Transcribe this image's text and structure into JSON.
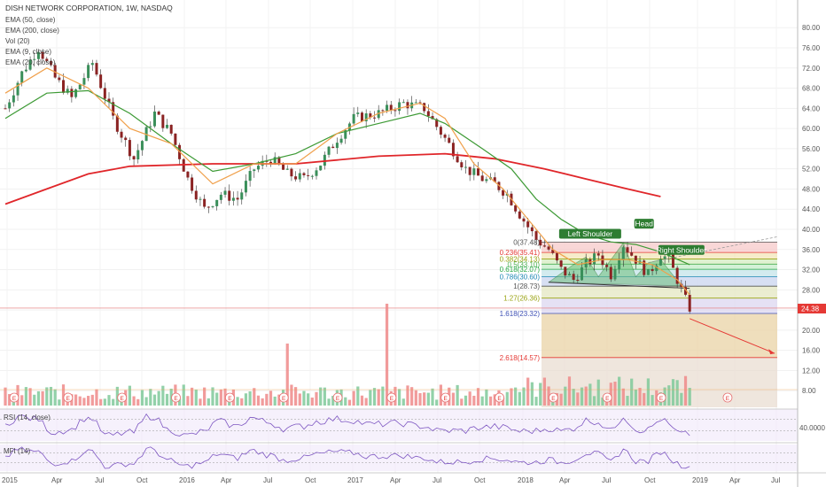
{
  "header": {
    "title": "DISH NETWORK CORPORATION, 1W, NASDAQ"
  },
  "indicators": [
    "EMA (50, close)",
    "EMA (200, close)",
    "Vol (20)",
    "EMA (9, close)",
    "EMA (20, close)"
  ],
  "panes": {
    "rsi_label": "RSI (14, close)",
    "mfi_label": "MFI (14)",
    "rsi_level": "40.0000"
  },
  "last_price": "24.38",
  "earnings_marker": "E",
  "chart_data": {
    "type": "candlestick",
    "title": "DISH NETWORK CORPORATION, 1W, NASDAQ",
    "x_ticks": [
      "2015",
      "Apr",
      "Jul",
      "Oct",
      "2016",
      "Apr",
      "Jul",
      "Oct",
      "2017",
      "Apr",
      "Jul",
      "Oct",
      "2018",
      "Apr",
      "Jul",
      "Oct",
      "2019",
      "Apr",
      "Jul"
    ],
    "y_ticks": [
      "80.00",
      "76.00",
      "72.00",
      "68.00",
      "64.00",
      "60.00",
      "56.00",
      "52.00",
      "48.00",
      "44.00",
      "40.00",
      "36.00",
      "32.00",
      "28.00",
      "24.00",
      "20.00",
      "16.00",
      "12.00",
      "8.00"
    ],
    "ylim": [
      4,
      82
    ],
    "price_path": [
      [
        0,
        64
      ],
      [
        4,
        71
      ],
      [
        8,
        76
      ],
      [
        12,
        70
      ],
      [
        16,
        66
      ],
      [
        21,
        73
      ],
      [
        26,
        62
      ],
      [
        31,
        54
      ],
      [
        36,
        63
      ],
      [
        40,
        59
      ],
      [
        44,
        50
      ],
      [
        48,
        44
      ],
      [
        52,
        47
      ],
      [
        56,
        46
      ],
      [
        60,
        52
      ],
      [
        64,
        54
      ],
      [
        68,
        51
      ],
      [
        72,
        50
      ],
      [
        76,
        53
      ],
      [
        80,
        58
      ],
      [
        84,
        62
      ],
      [
        90,
        63
      ],
      [
        96,
        65
      ],
      [
        101,
        64
      ],
      [
        106,
        58
      ],
      [
        111,
        52
      ],
      [
        115,
        50
      ],
      [
        118,
        49
      ],
      [
        121,
        47
      ],
      [
        124,
        43
      ],
      [
        128,
        38
      ],
      [
        131,
        36
      ],
      [
        134,
        32
      ],
      [
        137,
        30
      ],
      [
        140,
        33
      ],
      [
        143,
        35
      ],
      [
        146,
        31
      ],
      [
        149,
        37
      ],
      [
        152,
        34
      ],
      [
        155,
        31
      ],
      [
        158,
        35
      ],
      [
        160,
        34
      ],
      [
        162,
        30
      ],
      [
        164,
        26
      ],
      [
        165,
        24.4
      ]
    ],
    "ema_series": [
      {
        "name": "EMA (200, close)",
        "color": "#e0262a",
        "points": [
          [
            0,
            45
          ],
          [
            10,
            48
          ],
          [
            20,
            51
          ],
          [
            30,
            52.5
          ],
          [
            50,
            53
          ],
          [
            70,
            53
          ],
          [
            90,
            54.5
          ],
          [
            106,
            55
          ],
          [
            118,
            54
          ],
          [
            130,
            52
          ],
          [
            140,
            50
          ],
          [
            150,
            48
          ],
          [
            158,
            46.5
          ]
        ]
      },
      {
        "name": "EMA (50, close)",
        "color": "#3d9a35",
        "points": [
          [
            0,
            62
          ],
          [
            10,
            67
          ],
          [
            20,
            67.5
          ],
          [
            30,
            63
          ],
          [
            40,
            57
          ],
          [
            50,
            51.5
          ],
          [
            60,
            53
          ],
          [
            70,
            55
          ],
          [
            80,
            59
          ],
          [
            90,
            61
          ],
          [
            100,
            63
          ],
          [
            106,
            61
          ],
          [
            115,
            56
          ],
          [
            122,
            52
          ],
          [
            128,
            46
          ],
          [
            134,
            42
          ],
          [
            140,
            39
          ],
          [
            146,
            37.5
          ],
          [
            152,
            37
          ],
          [
            158,
            35.5
          ],
          [
            165,
            33
          ]
        ]
      },
      {
        "name": "EMA (20, close)",
        "color": "#f0a04b",
        "points": [
          [
            0,
            67
          ],
          [
            10,
            72
          ],
          [
            20,
            68
          ],
          [
            30,
            60
          ],
          [
            40,
            57
          ],
          [
            50,
            49
          ],
          [
            60,
            53
          ],
          [
            70,
            53
          ],
          [
            80,
            59
          ],
          [
            90,
            63
          ],
          [
            100,
            65
          ],
          [
            106,
            62
          ],
          [
            113,
            53
          ],
          [
            120,
            48
          ],
          [
            126,
            42
          ],
          [
            132,
            36
          ],
          [
            138,
            33
          ],
          [
            144,
            34
          ],
          [
            150,
            34
          ],
          [
            156,
            33
          ],
          [
            162,
            30
          ],
          [
            165,
            27
          ]
        ]
      }
    ],
    "fibonacci": [
      {
        "ratio": "0",
        "value": "37.48",
        "color": "#555555"
      },
      {
        "ratio": "0.236",
        "value": "35.41",
        "color": "#e53935"
      },
      {
        "ratio": "0.382",
        "value": "34.13",
        "color": "#9aa312"
      },
      {
        "ratio": "0.5",
        "value": "33.10",
        "color": "#4caf50"
      },
      {
        "ratio": "0.618",
        "value": "32.07",
        "color": "#27a844"
      },
      {
        "ratio": "0.786",
        "value": "30.60",
        "color": "#1e88b4"
      },
      {
        "ratio": "1",
        "value": "28.73",
        "color": "#555555"
      },
      {
        "ratio": "1.27",
        "value": "26.36",
        "color": "#9aa312"
      },
      {
        "ratio": "1.618",
        "value": "23.32",
        "color": "#3f51b5"
      },
      {
        "ratio": "2.618",
        "value": "14.57",
        "color": "#e53935"
      }
    ],
    "annotations": [
      "Left Shoulder",
      "Head",
      "Right Shoulder"
    ],
    "volume_spike_weeks": [
      92,
      68
    ]
  }
}
